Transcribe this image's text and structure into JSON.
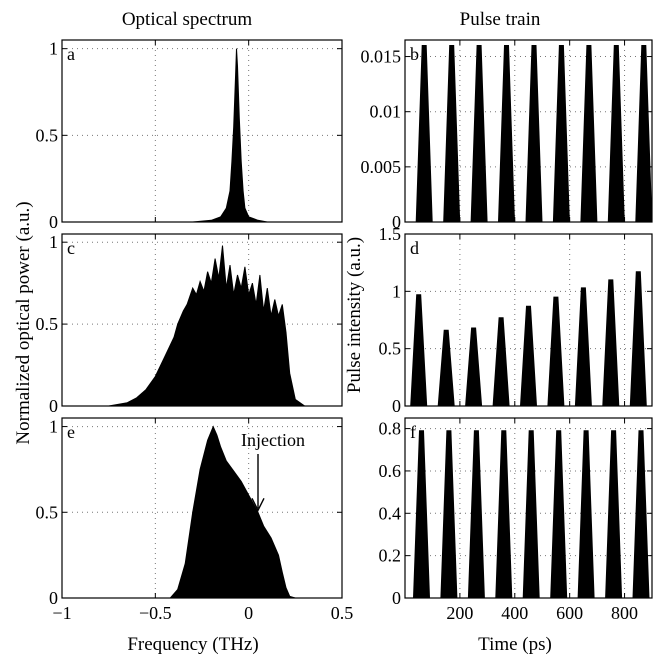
{
  "titles": {
    "left": "Optical spectrum",
    "right": "Pulse train"
  },
  "labels": {
    "left_ylabel": "Normalized optical power (a.u.)",
    "right_ylabel": "Pulse intensity (a.u.)",
    "left_xlabel": "Frequency (THz)",
    "right_xlabel": "Time (ps)"
  },
  "chart_data": [
    {
      "id": "a",
      "type": "area",
      "letter": "a",
      "title": "Optical spectrum",
      "xlim": [
        -1,
        0.5
      ],
      "ylim": [
        0,
        1.05
      ],
      "grid": true,
      "ytick_values": [
        0,
        0.5,
        1
      ],
      "yticks": [
        "0",
        "0.5",
        "1"
      ],
      "x": [
        -1,
        -0.3,
        -0.2,
        -0.15,
        -0.12,
        -0.1,
        -0.09,
        -0.08,
        -0.07,
        -0.065,
        -0.06,
        -0.05,
        -0.04,
        -0.03,
        -0.02,
        0.0,
        0.05,
        0.1,
        0.5
      ],
      "y": [
        0,
        0,
        0.01,
        0.03,
        0.08,
        0.18,
        0.35,
        0.55,
        0.85,
        1.0,
        0.9,
        0.6,
        0.35,
        0.18,
        0.08,
        0.03,
        0.01,
        0,
        0
      ]
    },
    {
      "id": "c",
      "type": "area",
      "letter": "c",
      "xlim": [
        -1,
        0.5
      ],
      "ylim": [
        0,
        1.05
      ],
      "grid": true,
      "ytick_values": [
        0,
        0.5,
        1
      ],
      "yticks": [
        "0",
        "0.5",
        "1"
      ],
      "x": [
        -1,
        -0.75,
        -0.65,
        -0.6,
        -0.55,
        -0.5,
        -0.45,
        -0.4,
        -0.38,
        -0.35,
        -0.33,
        -0.3,
        -0.28,
        -0.26,
        -0.24,
        -0.22,
        -0.2,
        -0.18,
        -0.16,
        -0.14,
        -0.12,
        -0.1,
        -0.08,
        -0.06,
        -0.04,
        -0.02,
        0.0,
        0.02,
        0.04,
        0.06,
        0.08,
        0.1,
        0.12,
        0.14,
        0.16,
        0.18,
        0.2,
        0.22,
        0.25,
        0.3,
        0.5
      ],
      "y": [
        0,
        0,
        0.02,
        0.05,
        0.1,
        0.18,
        0.3,
        0.42,
        0.5,
        0.58,
        0.62,
        0.72,
        0.68,
        0.76,
        0.7,
        0.82,
        0.75,
        0.9,
        0.78,
        0.98,
        0.72,
        0.86,
        0.68,
        0.8,
        0.72,
        0.85,
        0.68,
        0.75,
        0.62,
        0.8,
        0.58,
        0.72,
        0.55,
        0.65,
        0.55,
        0.62,
        0.45,
        0.2,
        0.04,
        0,
        0
      ]
    },
    {
      "id": "e",
      "type": "area",
      "letter": "e",
      "xlim": [
        -1,
        0.5
      ],
      "ylim": [
        0,
        1.05
      ],
      "grid": true,
      "ytick_values": [
        0,
        0.5,
        1
      ],
      "yticks": [
        "0",
        "0.5",
        "1"
      ],
      "xtick_values": [
        -1,
        -0.5,
        0,
        0.5
      ],
      "xticks": [
        "−1",
        "−0.5",
        "0",
        "0.5"
      ],
      "annotation": {
        "text": "Injection",
        "x": 0.05,
        "y": 0.5
      },
      "x": [
        -1,
        -0.42,
        -0.38,
        -0.34,
        -0.3,
        -0.26,
        -0.22,
        -0.19,
        -0.17,
        -0.15,
        -0.12,
        -0.08,
        -0.04,
        0.0,
        0.05,
        0.08,
        0.12,
        0.16,
        0.18,
        0.2,
        0.22,
        0.25,
        0.5
      ],
      "y": [
        0,
        0,
        0.05,
        0.2,
        0.5,
        0.75,
        0.92,
        1.0,
        0.95,
        0.88,
        0.8,
        0.74,
        0.68,
        0.6,
        0.5,
        0.42,
        0.35,
        0.25,
        0.15,
        0.06,
        0.01,
        0,
        0
      ]
    },
    {
      "id": "b",
      "type": "line",
      "letter": "b",
      "title": "Pulse train",
      "xlim": [
        0,
        900
      ],
      "ylim": [
        0,
        0.0165
      ],
      "grid": true,
      "ytick_values": [
        0,
        0.005,
        0.01,
        0.015
      ],
      "yticks": [
        "0",
        "0.005",
        "0.01",
        "0.015"
      ],
      "pulse_times": [
        70,
        170,
        270,
        370,
        470,
        570,
        670,
        770,
        870
      ],
      "pulse_heights": [
        0.016,
        0.016,
        0.016,
        0.016,
        0.016,
        0.016,
        0.016,
        0.016,
        0.016
      ]
    },
    {
      "id": "d",
      "type": "line",
      "letter": "d",
      "xlim": [
        0,
        900
      ],
      "ylim": [
        0,
        1.5
      ],
      "grid": true,
      "ytick_values": [
        0,
        0.5,
        1,
        1.5
      ],
      "yticks": [
        "0",
        "0.5",
        "1",
        "1.5"
      ],
      "pulse_times": [
        50,
        150,
        250,
        350,
        450,
        550,
        650,
        750,
        850
      ],
      "pulse_heights": [
        0.97,
        0.66,
        0.68,
        0.77,
        0.87,
        0.95,
        1.03,
        1.1,
        1.17
      ]
    },
    {
      "id": "f",
      "type": "line",
      "letter": "f",
      "xlim": [
        0,
        900
      ],
      "ylim": [
        0,
        0.85
      ],
      "grid": true,
      "ytick_values": [
        0,
        0.2,
        0.4,
        0.6,
        0.8
      ],
      "yticks": [
        "0",
        "0.2",
        "0.4",
        "0.6",
        "0.8"
      ],
      "xtick_values": [
        200,
        400,
        600,
        800
      ],
      "xticks": [
        "200",
        "400",
        "600",
        "800"
      ],
      "pulse_times": [
        60,
        160,
        260,
        360,
        460,
        560,
        660,
        760,
        860
      ],
      "pulse_heights": [
        0.79,
        0.79,
        0.79,
        0.79,
        0.79,
        0.79,
        0.79,
        0.79,
        0.79
      ]
    }
  ]
}
